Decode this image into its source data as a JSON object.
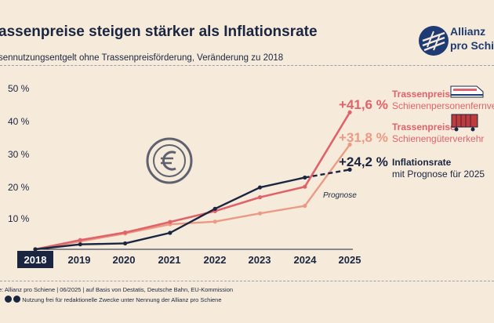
{
  "header": {
    "title": "assenpreise steigen stärker als Inflationsrate",
    "subtitle": "sennutzungsentgelt ohne Trassenpreisförderung, Veränderung zu 2018"
  },
  "logo": {
    "line1": "Allianz",
    "line2": "pro Schiene",
    "icon": "rail-logo-icon"
  },
  "footer": {
    "source": "e: Allianz pro Schiene | 06/2025 | auf Basis von Destatis, Deutsche Bahn, EU-Kommission",
    "license": "Nutzung frei für redaktionelle Zwecke unter Nennung der Allianz pro Schiene"
  },
  "colors": {
    "background": "#f6ebdb",
    "passenger": "#e0626a",
    "freight": "#eb9a84",
    "inflation": "#1a2540"
  },
  "chart_data": {
    "type": "line",
    "x": [
      "2018",
      "2019",
      "2020",
      "2021",
      "2022",
      "2023",
      "2024",
      "2025"
    ],
    "yticks": [
      "10 %",
      "20 %",
      "30 %",
      "40 %",
      "50 %"
    ],
    "ylim": [
      0,
      50
    ],
    "grid": false,
    "annotation": "Prognose",
    "decoration_icon": "euro-icon",
    "series": [
      {
        "key": "passenger",
        "values": [
          0,
          2.8,
          5.1,
          8.3,
          11.6,
          15.8,
          19.0,
          41.6
        ],
        "label_value": "+41,6 %",
        "label_title": "Trassenpreise",
        "label_sub": "Schienenpersonenfernverkehr",
        "icon": "passenger-train-icon"
      },
      {
        "key": "freight",
        "values": [
          0,
          2.4,
          4.8,
          7.6,
          8.4,
          10.9,
          13.2,
          31.8
        ],
        "label_value": "+31,8 %",
        "label_title": "Trassenpreise",
        "label_sub": "Schienengüterverkehr",
        "icon": "freight-wagon-icon"
      },
      {
        "key": "inflation",
        "values": [
          0,
          1.5,
          1.8,
          5.0,
          12.3,
          18.8,
          21.8,
          24.2
        ],
        "label_value": "+24,2 %",
        "label_title": "Inflationsrate",
        "label_sub": "mit Prognose für 2025",
        "dashed_from": "2024"
      }
    ]
  }
}
